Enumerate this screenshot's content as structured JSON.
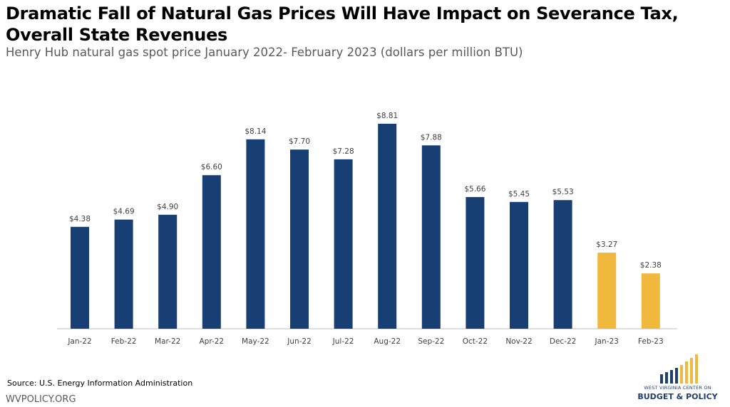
{
  "header": {
    "title": "Dramatic Fall of Natural Gas Prices Will Have Impact on Severance Tax, Overall State Revenues",
    "subtitle": "Henry Hub natural gas spot price January 2022- February 2023 (dollars per million BTU)"
  },
  "footer": {
    "source": "Source: U.S. Energy Information Administration",
    "site": "WVPOLICY.ORG",
    "logo_line1": "WEST VIRGINIA CENTER ON",
    "logo_line2": "BUDGET & POLICY"
  },
  "colors": {
    "bar_2022": "#173f73",
    "bar_2023": "#f0b83c",
    "axis": "#bfbfbf",
    "label": "#404040",
    "logo_blue": "#1f3f6e",
    "logo_gold": "#f0b83c"
  },
  "chart_data": {
    "type": "bar",
    "title": "Dramatic Fall of Natural Gas Prices Will Have Impact on Severance Tax, Overall State Revenues",
    "subtitle": "Henry Hub natural gas spot price January 2022- February 2023 (dollars per million BTU)",
    "xlabel": "",
    "ylabel": "",
    "ylim": [
      0,
      9
    ],
    "grid": false,
    "categories": [
      "Jan-22",
      "Feb-22",
      "Mar-22",
      "Apr-22",
      "May-22",
      "Jun-22",
      "Jul-22",
      "Aug-22",
      "Sep-22",
      "Oct-22",
      "Nov-22",
      "Dec-22",
      "Jan-23",
      "Feb-23"
    ],
    "values": [
      4.38,
      4.69,
      4.9,
      6.6,
      8.14,
      7.7,
      7.28,
      8.81,
      7.88,
      5.66,
      5.45,
      5.53,
      3.27,
      2.38
    ],
    "data_labels": [
      "$4.38",
      "$4.69",
      "$4.90",
      "$6.60",
      "$8.14",
      "$7.70",
      "$7.28",
      "$8.81",
      "$7.88",
      "$5.66",
      "$5.45",
      "$5.53",
      "$3.27",
      "$2.38"
    ],
    "bar_colors": [
      "#173f73",
      "#173f73",
      "#173f73",
      "#173f73",
      "#173f73",
      "#173f73",
      "#173f73",
      "#173f73",
      "#173f73",
      "#173f73",
      "#173f73",
      "#173f73",
      "#f0b83c",
      "#f0b83c"
    ]
  }
}
